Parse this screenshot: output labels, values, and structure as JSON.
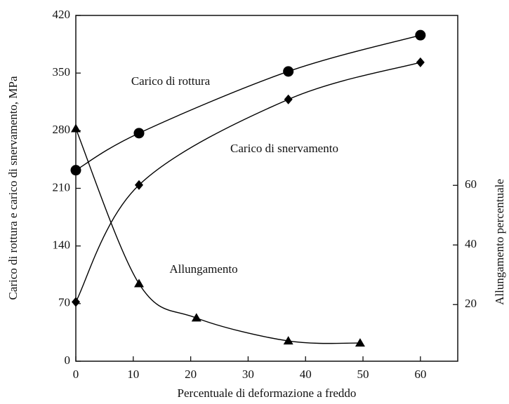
{
  "chart_data": {
    "type": "line",
    "xlabel": "Percentuale di deformazione a freddo",
    "ylabel": "Carico di rottura e carico di snervamento, MPa",
    "y2label": "Allungamento percentuale",
    "xlim": [
      0,
      66.5
    ],
    "xticks": [
      0,
      10,
      20,
      30,
      40,
      50,
      60
    ],
    "ylim": [
      0,
      420
    ],
    "yticks": [
      0,
      70,
      140,
      210,
      280,
      350,
      420
    ],
    "y2lim": [
      1,
      117
    ],
    "y2ticks": [
      20,
      40,
      60
    ],
    "series": [
      {
        "name": "Carico di rottura",
        "color": "#000000",
        "marker": "circle",
        "x": [
          0,
          11,
          37,
          60
        ],
        "values": [
          232,
          277,
          352,
          396
        ]
      },
      {
        "name": "Carico di snervamento",
        "color": "#000000",
        "marker": "diamond",
        "x": [
          0,
          11,
          37,
          60
        ],
        "values": [
          72,
          214,
          318,
          363
        ]
      },
      {
        "name": "Allungamento",
        "color": "#000000",
        "marker": "triangle",
        "axis": "y2",
        "x": [
          0,
          11,
          21,
          37,
          49.5
        ],
        "values": [
          79,
          27,
          15.5,
          7.8,
          7.1
        ]
      }
    ]
  }
}
